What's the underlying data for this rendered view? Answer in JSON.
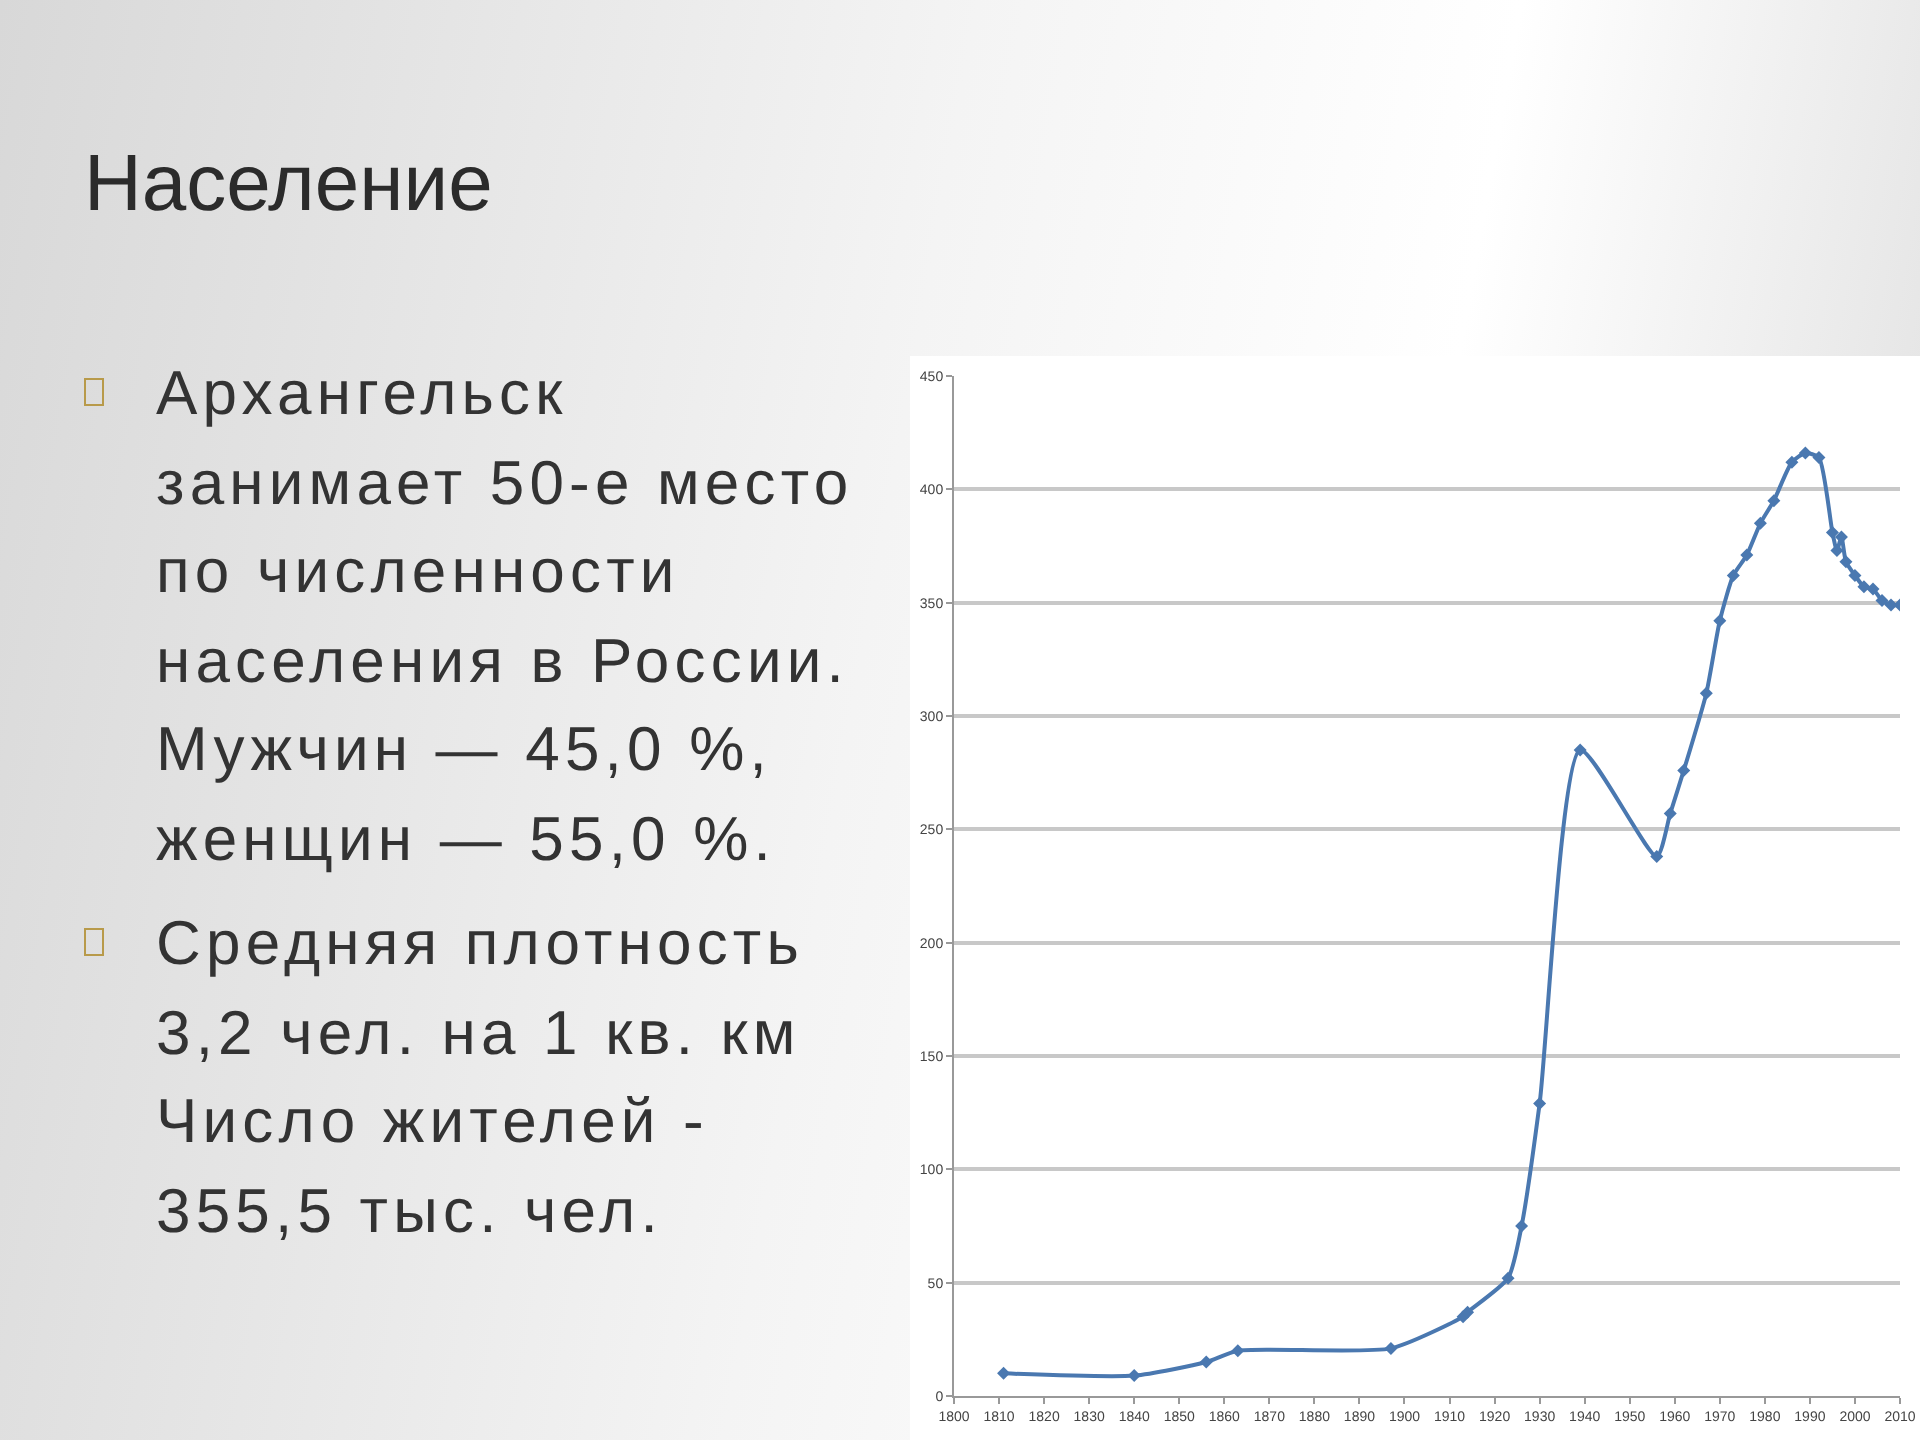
{
  "chart_data": {
    "type": "line",
    "title": "Население",
    "annotations": [
      "Архангельск занимает 50-е место по численности населения в России. Мужчин — 45,0 %, женщин — 55,0 %.",
      "Средняя плотность 3,2 чел. на 1 кв. км Число жителей - 355,5 тыс. чел."
    ],
    "x": [
      1811,
      1840,
      1856,
      1863,
      1897,
      1913,
      1914,
      1923,
      1926,
      1930,
      1939,
      1956,
      1959,
      1962,
      1967,
      1970,
      1973,
      1976,
      1979,
      1982,
      1986,
      1989,
      1992,
      1995,
      1996,
      1997,
      1998,
      2000,
      2002,
      2004,
      2006,
      2008,
      2010
    ],
    "series": [
      {
        "color": "#4a78b0",
        "values": [
          10,
          9,
          15,
          20,
          21,
          35,
          37,
          52,
          75,
          129,
          285,
          238,
          257,
          276,
          310,
          342,
          362,
          371,
          385,
          395,
          412,
          416,
          414,
          381,
          373,
          379,
          368,
          362,
          357,
          356,
          351,
          349,
          349
        ]
      }
    ],
    "xlim": [
      1800,
      2010
    ],
    "xticks": [
      1800,
      1810,
      1820,
      1830,
      1840,
      1850,
      1860,
      1870,
      1880,
      1890,
      1900,
      1910,
      1920,
      1930,
      1940,
      1950,
      1960,
      1970,
      1980,
      1990,
      2000,
      2010
    ],
    "ylim": [
      0,
      450
    ],
    "yticks": [
      0,
      50,
      100,
      150,
      200,
      250,
      300,
      350,
      400,
      450
    ],
    "grid": "y",
    "marker": "diamond",
    "line_style": "solid"
  }
}
